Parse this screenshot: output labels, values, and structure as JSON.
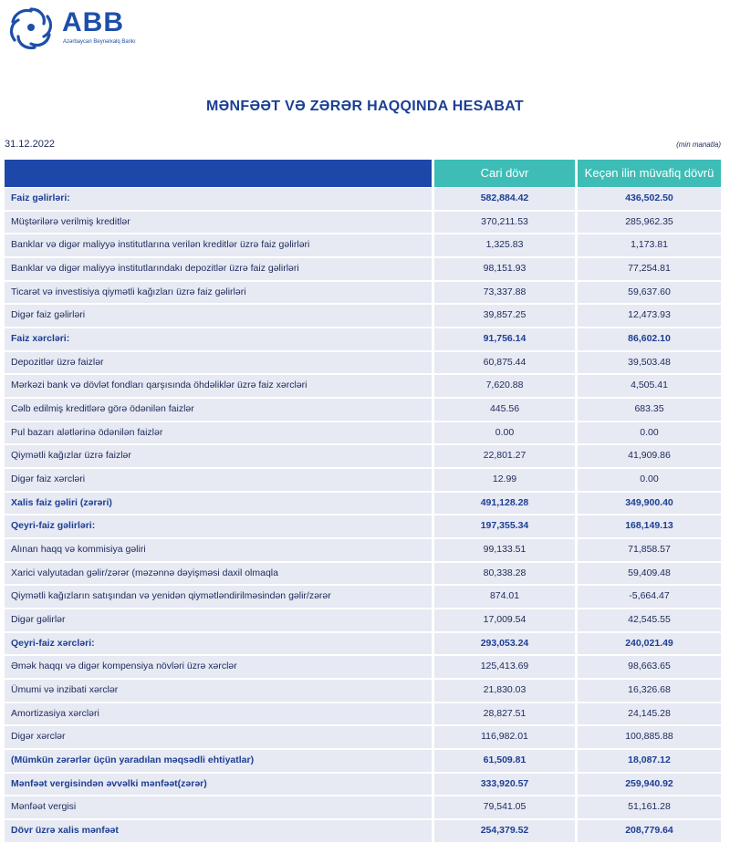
{
  "header": {
    "logo": "ABB",
    "logo_subtitle": "Azərbaycan Beynəlxalq Bankı",
    "title": "MƏNFƏƏT VƏ ZƏRƏR HAQQINDA HESABAT",
    "date": "31.12.2022",
    "unit": "(min manatla)"
  },
  "table": {
    "columns": [
      "Cari dövr",
      "Keçən ilin müvafiq dövrü"
    ],
    "rows": [
      [
        "Faiz gəlirləri:",
        "582,884.42",
        "436,502.50"
      ],
      [
        "Müştərilərə verilmiş kreditlər",
        "370,211.53",
        "285,962.35"
      ],
      [
        "Banklar və digər maliyyə institutlarına verilən kreditlər üzrə faiz gəlirləri",
        "1,325.83",
        "1,173.81"
      ],
      [
        "Banklar və digər maliyyə institutlarındakı depozitlər üzrə faiz gəlirləri",
        "98,151.93",
        "77,254.81"
      ],
      [
        "Ticarət və investisiya qiymətli kağızları üzrə faiz gəlirləri",
        "73,337.88",
        "59,637.60"
      ],
      [
        "Digər faiz gəlirləri",
        "39,857.25",
        "12,473.93"
      ],
      [
        "Faiz xərcləri:",
        "91,756.14",
        "86,602.10"
      ],
      [
        "Depozitlər üzrə faizlər",
        "60,875.44",
        "39,503.48"
      ],
      [
        "Mərkəzi bank və dövlət fondları qarşısında öhdəliklər üzrə faiz xərcləri",
        "7,620.88",
        "4,505.41"
      ],
      [
        "Cəlb edilmiş kreditlərə görə ödənilən faizlər",
        "445.56",
        "683.35"
      ],
      [
        "Pul bazarı alətlərinə ödənilən faizlər",
        "0.00",
        "0.00"
      ],
      [
        "Qiymətli kağızlar üzrə faizlər",
        "22,801.27",
        "41,909.86"
      ],
      [
        "Digər faiz xərcləri",
        "12.99",
        "0.00"
      ],
      [
        "Xalis faiz gəliri (zərəri)",
        "491,128.28",
        "349,900.40"
      ],
      [
        "Qeyri-faiz gəlirləri:",
        "197,355.34",
        "168,149.13"
      ],
      [
        "Alınan haqq və kommisiya gəliri",
        "99,133.51",
        "71,858.57"
      ],
      [
        "Xarici valyutadan gəlir/zərər (məzənnə dəyişməsi daxil olmaqla",
        "80,338.28",
        "59,409.48"
      ],
      [
        "Qiymətli kağızların satışından və yenidən qiymətləndirilməsindən gəlir/zərər",
        "874.01",
        "-5,664.47"
      ],
      [
        "Digər gəlirlər",
        "17,009.54",
        "42,545.55"
      ],
      [
        "Qeyri-faiz xərcləri:",
        "293,053.24",
        "240,021.49"
      ],
      [
        "Əmək haqqı və digər kompensiya növləri üzrə xərclər",
        "125,413.69",
        "98,663.65"
      ],
      [
        "Ümumi və inzibati xərclər",
        "21,830.03",
        "16,326.68"
      ],
      [
        "Amortizasiya xərcləri",
        "28,827.51",
        "24,145.28"
      ],
      [
        "Digər xərclər",
        "116,982.01",
        "100,885.88"
      ],
      [
        "(Mümkün zərərlər üçün yaradılan məqsədli ehtiyatlar)",
        "61,509.81",
        "18,087.12"
      ],
      [
        "Mənfəət vergisindən əvvəlki mənfəət(zərər)",
        "333,920.57",
        "259,940.92"
      ],
      [
        "Mənfəət vergisi",
        "79,541.05",
        "51,161.28"
      ],
      [
        "Dövr üzrə xalis mənfəət",
        "254,379.52",
        "208,779.64"
      ]
    ]
  }
}
